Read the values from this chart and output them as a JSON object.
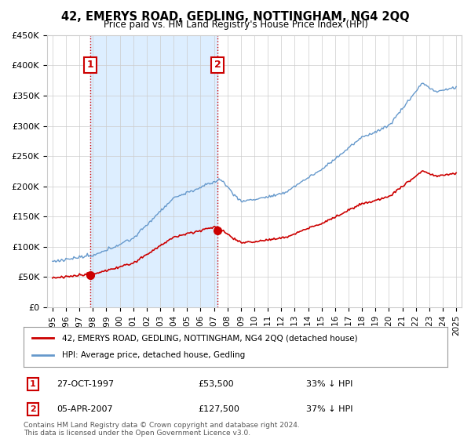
{
  "title": "42, EMERYS ROAD, GEDLING, NOTTINGHAM, NG4 2QQ",
  "subtitle": "Price paid vs. HM Land Registry's House Price Index (HPI)",
  "legend_property": "42, EMERYS ROAD, GEDLING, NOTTINGHAM, NG4 2QQ (detached house)",
  "legend_hpi": "HPI: Average price, detached house, Gedling",
  "footer": "Contains HM Land Registry data © Crown copyright and database right 2024.\nThis data is licensed under the Open Government Licence v3.0.",
  "sale1_date": "27-OCT-1997",
  "sale1_year": 1997.83,
  "sale1_price": 53500,
  "sale1_label": "1",
  "sale2_date": "05-APR-2007",
  "sale2_year": 2007.27,
  "sale2_price": 127500,
  "sale2_label": "2",
  "ylim": [
    0,
    450000
  ],
  "yticks": [
    0,
    50000,
    100000,
    150000,
    200000,
    250000,
    300000,
    350000,
    400000,
    450000
  ],
  "ytick_labels": [
    "£0",
    "£50K",
    "£100K",
    "£150K",
    "£200K",
    "£250K",
    "£300K",
    "£350K",
    "£400K",
    "£450K"
  ],
  "property_color": "#cc0000",
  "hpi_color": "#6699cc",
  "shade_color": "#ddeeff",
  "background_color": "#ffffff",
  "grid_color": "#cccccc",
  "annotation_box_color": "#cc0000",
  "table_row1": [
    "1",
    "27-OCT-1997",
    "£53,500",
    "33% ↓ HPI"
  ],
  "table_row2": [
    "2",
    "05-APR-2007",
    "£127,500",
    "37% ↓ HPI"
  ]
}
